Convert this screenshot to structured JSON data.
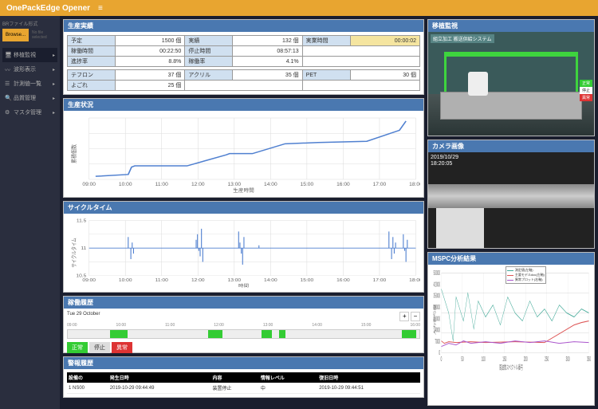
{
  "header": {
    "title": "OnePackEdge Opener"
  },
  "sidebar": {
    "fileLabel": "BRファイル形式",
    "browse": "Browse...",
    "fileText": "No file selected",
    "items": [
      {
        "icon": "monitor",
        "label": "移植監視"
      },
      {
        "icon": "wave",
        "label": "波形表示"
      },
      {
        "icon": "list",
        "label": "計測値一覧"
      },
      {
        "icon": "search",
        "label": "品質管理"
      },
      {
        "icon": "gear",
        "label": "マスタ管理"
      }
    ]
  },
  "panels": {
    "production": {
      "title": "生産実績",
      "rows": [
        [
          {
            "l": "予定",
            "v": "1500 個"
          },
          {
            "l": "実績",
            "v": "132 個"
          },
          {
            "l": "実業時間",
            "v": "00:00:02",
            "hl": true
          }
        ],
        [
          {
            "l": "稼働時間",
            "v": "00:22:50"
          },
          {
            "l": "停止時間",
            "v": "08:57:13"
          },
          {
            "l": "",
            "v": ""
          }
        ],
        [
          {
            "l": "進捗率",
            "v": "8.8%"
          },
          {
            "l": "稼働率",
            "v": "4.1%"
          },
          {
            "l": "",
            "v": ""
          }
        ]
      ],
      "rows2": [
        [
          {
            "l": "テフロン",
            "v": "37 個"
          },
          {
            "l": "アクリル",
            "v": "35 個"
          },
          {
            "l": "PET",
            "v": "30 個"
          }
        ],
        [
          {
            "l": "よごれ",
            "v": "25 個"
          },
          {
            "l": "",
            "v": ""
          },
          {
            "l": "",
            "v": ""
          }
        ]
      ]
    },
    "status": {
      "title": "生産状況",
      "ylabel": "累積個数",
      "xlabel": "生産時間",
      "xticks": [
        "09:00",
        "10:00",
        "11:00",
        "12:00",
        "13:00",
        "14:00",
        "15:00",
        "16:00",
        "17:00",
        "18:00"
      ],
      "ymax": 100,
      "line_color": "#5080d0",
      "grid_color": "#ddd",
      "points": [
        [
          0.02,
          0.95
        ],
        [
          0.12,
          0.92
        ],
        [
          0.13,
          0.8
        ],
        [
          0.14,
          0.78
        ],
        [
          0.3,
          0.78
        ],
        [
          0.42,
          0.6
        ],
        [
          0.43,
          0.58
        ],
        [
          0.5,
          0.58
        ],
        [
          0.6,
          0.42
        ],
        [
          0.7,
          0.4
        ],
        [
          0.85,
          0.38
        ],
        [
          0.95,
          0.2
        ],
        [
          0.97,
          0.05
        ]
      ]
    },
    "cycle": {
      "title": "サイクルタイム",
      "ylabel": "サイクルタイム",
      "xlabel": "時間",
      "xticks": [
        "09:00",
        "10:00",
        "11:00",
        "12:00",
        "13:00",
        "14:00",
        "15:00",
        "16:00",
        "17:00",
        "18:00"
      ],
      "yticks": [
        "10.5",
        "11",
        "11.5"
      ],
      "line_color": "#5080d0",
      "base": 0.5,
      "clusters": [
        {
          "x": 0.13,
          "pts": [
            0.3,
            0.5,
            0.7,
            0.4,
            0.6
          ]
        },
        {
          "x": 0.34,
          "pts": [
            0.35,
            0.25,
            0.55,
            0.65,
            0.15,
            0.75
          ]
        },
        {
          "x": 0.47,
          "pts": [
            0.2,
            0.4,
            0.6,
            0.8,
            0.3,
            0.5
          ]
        },
        {
          "x": 0.52,
          "pts": [
            0.5,
            0.45
          ]
        },
        {
          "x": 0.93,
          "pts": [
            0.2,
            0.5,
            0.7,
            0.3,
            0.6,
            0.4
          ]
        },
        {
          "x": 0.97,
          "pts": [
            0.25,
            0.55,
            0.75,
            0.35
          ]
        }
      ]
    },
    "history": {
      "title": "稼働履歴",
      "date": "Tue 29 October",
      "ticks": [
        "09:00",
        "10:00",
        "11:00",
        "12:00",
        "13:00",
        "14:00",
        "15:00",
        "16:00"
      ],
      "segments": [
        {
          "start": 0.12,
          "w": 0.05,
          "c": "#3c3"
        },
        {
          "start": 0.4,
          "w": 0.04,
          "c": "#3c3"
        },
        {
          "start": 0.55,
          "w": 0.03,
          "c": "#3c3"
        },
        {
          "start": 0.6,
          "w": 0.02,
          "c": "#3c3"
        },
        {
          "start": 0.95,
          "w": 0.04,
          "c": "#3c3"
        }
      ],
      "badges": [
        {
          "t": "正常",
          "c": "#3c3"
        },
        {
          "t": "停止",
          "c": "#ddd",
          "tc": "#333"
        },
        {
          "t": "異常",
          "c": "#d33"
        }
      ]
    },
    "alarm": {
      "title": "警報履歴",
      "cols": [
        "設備の",
        "発生日時",
        "内容",
        "情報レベル",
        "復旧日時"
      ],
      "rows": [
        [
          "1   NS00",
          "2019-10-29 09:44:49",
          "装置停止",
          "中",
          "2019-10-29 09:44:51"
        ]
      ]
    },
    "cam1": {
      "title": "移植監視",
      "overlay": "組立加工 搬送供給システム",
      "status": [
        {
          "t": "正常",
          "c": "#3c3"
        },
        {
          "t": "停止",
          "c": "#fff",
          "tc": "#333"
        },
        {
          "t": "異常",
          "c": "#d33"
        }
      ]
    },
    "cam2": {
      "title": "カメラ画像",
      "ts1": "2019/10/29",
      "ts2": "18:20:05"
    },
    "mspc": {
      "title": "MSPC分析結果",
      "xlabel": "周波数スペクトル番号",
      "ylabel": "入力寄与度",
      "yticks": [
        "0",
        "7000",
        "14000",
        "21000",
        "28000",
        "35000",
        "42000",
        "50000"
      ],
      "xticks": [
        "0",
        "50",
        "100",
        "150",
        "200",
        "250",
        "300",
        "350"
      ],
      "legend": [
        {
          "t": "測定値(左軸)",
          "c": "#4a9"
        },
        {
          "t": "主要モデルdoc(左軸)",
          "c": "#d55"
        },
        {
          "t": "異常プロット(右軸)",
          "c": "#a5c"
        }
      ],
      "series": [
        {
          "c": "#4a9",
          "pts": [
            [
              0,
              0.2
            ],
            [
              0.05,
              0.5
            ],
            [
              0.08,
              0.85
            ],
            [
              0.1,
              0.3
            ],
            [
              0.15,
              0.6
            ],
            [
              0.18,
              0.25
            ],
            [
              0.22,
              0.7
            ],
            [
              0.25,
              0.35
            ],
            [
              0.3,
              0.55
            ],
            [
              0.35,
              0.4
            ],
            [
              0.4,
              0.65
            ],
            [
              0.45,
              0.3
            ],
            [
              0.5,
              0.5
            ],
            [
              0.55,
              0.6
            ],
            [
              0.6,
              0.35
            ],
            [
              0.65,
              0.55
            ],
            [
              0.7,
              0.45
            ],
            [
              0.75,
              0.6
            ],
            [
              0.8,
              0.4
            ],
            [
              0.85,
              0.5
            ],
            [
              0.9,
              0.55
            ],
            [
              0.95,
              0.45
            ],
            [
              1,
              0.5
            ]
          ]
        },
        {
          "c": "#d55",
          "pts": [
            [
              0,
              0.85
            ],
            [
              0.02,
              0.88
            ],
            [
              0.05,
              0.86
            ],
            [
              0.1,
              0.87
            ],
            [
              0.2,
              0.86
            ],
            [
              0.3,
              0.87
            ],
            [
              0.5,
              0.86
            ],
            [
              0.7,
              0.87
            ],
            [
              0.9,
              0.65
            ],
            [
              0.95,
              0.62
            ],
            [
              1,
              0.6
            ]
          ]
        },
        {
          "c": "#a5c",
          "pts": [
            [
              0,
              0.92
            ],
            [
              0.05,
              0.88
            ],
            [
              0.1,
              0.9
            ],
            [
              0.15,
              0.85
            ],
            [
              0.2,
              0.88
            ],
            [
              0.3,
              0.86
            ],
            [
              0.4,
              0.88
            ],
            [
              0.5,
              0.85
            ],
            [
              0.6,
              0.87
            ],
            [
              0.7,
              0.85
            ],
            [
              0.8,
              0.88
            ],
            [
              0.9,
              0.86
            ],
            [
              1,
              0.87
            ]
          ]
        }
      ]
    }
  }
}
